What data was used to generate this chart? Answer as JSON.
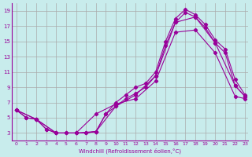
{
  "xlabel": "Windchill (Refroidissement éolien,°C)",
  "bg_color": "#c8ecec",
  "line_color": "#990099",
  "grid_color": "#aaaaaa",
  "xlim": [
    0,
    23
  ],
  "ylim": [
    2,
    20
  ],
  "xticks": [
    0,
    1,
    2,
    3,
    4,
    5,
    6,
    7,
    8,
    9,
    10,
    11,
    12,
    13,
    14,
    15,
    16,
    17,
    18,
    19,
    20,
    21,
    22,
    23
  ],
  "yticks": [
    3,
    5,
    7,
    9,
    11,
    13,
    15,
    17,
    19
  ],
  "line1_x": [
    0,
    1,
    2,
    3,
    4,
    5,
    6,
    7,
    8,
    9,
    10,
    11,
    12,
    13,
    14,
    15,
    16,
    17,
    18,
    19,
    20,
    21,
    22,
    23
  ],
  "line1_y": [
    6.0,
    5.0,
    4.8,
    3.5,
    3.0,
    3.0,
    3.0,
    3.0,
    3.2,
    5.5,
    7.0,
    8.0,
    9.0,
    9.5,
    11.0,
    15.0,
    18.0,
    19.2,
    18.5,
    17.2,
    15.2,
    14.0,
    10.0,
    8.0
  ],
  "line2_x": [
    0,
    1,
    2,
    3,
    4,
    5,
    6,
    7,
    8,
    9,
    10,
    11,
    12,
    13,
    14,
    15,
    16,
    17,
    18,
    19,
    20,
    21,
    22,
    23
  ],
  "line2_y": [
    6.0,
    5.0,
    4.8,
    3.5,
    3.0,
    3.0,
    3.0,
    3.0,
    3.2,
    5.5,
    6.5,
    7.5,
    8.2,
    9.0,
    10.5,
    14.5,
    17.5,
    18.8,
    18.2,
    16.8,
    14.8,
    13.5,
    9.2,
    7.8
  ],
  "line3_x": [
    0,
    2,
    4,
    6,
    8,
    10,
    12,
    14,
    16,
    18,
    20,
    22,
    23
  ],
  "line3_y": [
    6.0,
    4.8,
    3.0,
    3.0,
    3.2,
    6.5,
    8.0,
    10.5,
    17.5,
    18.2,
    14.8,
    9.2,
    7.8
  ],
  "line4_x": [
    0,
    2,
    4,
    6,
    8,
    10,
    12,
    14,
    16,
    18,
    20,
    22,
    23
  ],
  "line4_y": [
    6.0,
    4.8,
    3.0,
    3.0,
    5.5,
    6.8,
    7.5,
    9.8,
    16.2,
    16.5,
    13.5,
    7.8,
    7.5
  ]
}
